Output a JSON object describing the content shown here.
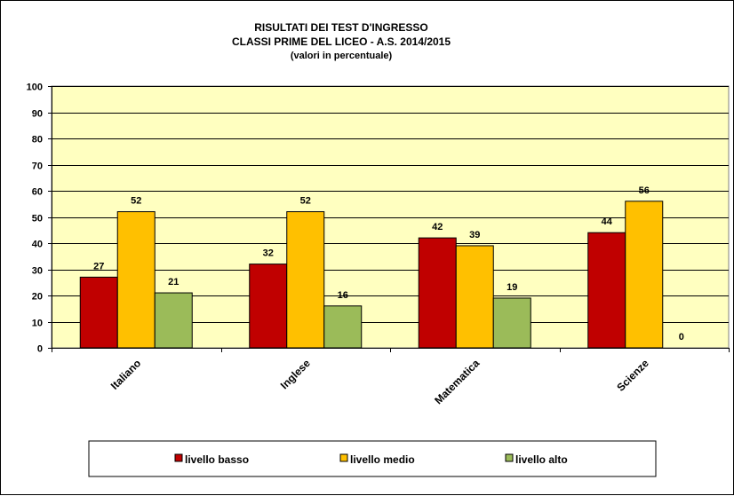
{
  "chart_data": {
    "type": "bar",
    "title": [
      "RISULTATI DEI TEST D'INGRESSO",
      "CLASSI PRIME DEL LICEO  - A.S. 2014/2015",
      "(valori  in percentuale)"
    ],
    "categories": [
      "Italiano",
      "Inglese",
      "Matematica",
      "Scienze"
    ],
    "series": [
      {
        "name": "livello basso",
        "color": "#c00000",
        "values": [
          27,
          32,
          42,
          44
        ]
      },
      {
        "name": "livello medio",
        "color": "#ffc000",
        "values": [
          52,
          52,
          39,
          56
        ]
      },
      {
        "name": "livello alto",
        "color": "#9bbb59",
        "values": [
          21,
          16,
          19,
          0
        ]
      }
    ],
    "ylim": [
      0,
      100
    ],
    "yticks": [
      0,
      10,
      20,
      30,
      40,
      50,
      60,
      70,
      80,
      90,
      100
    ],
    "xlabel": "",
    "ylabel": "",
    "grid": true,
    "plot_background": "#ffffc0",
    "legend_position": "bottom"
  }
}
